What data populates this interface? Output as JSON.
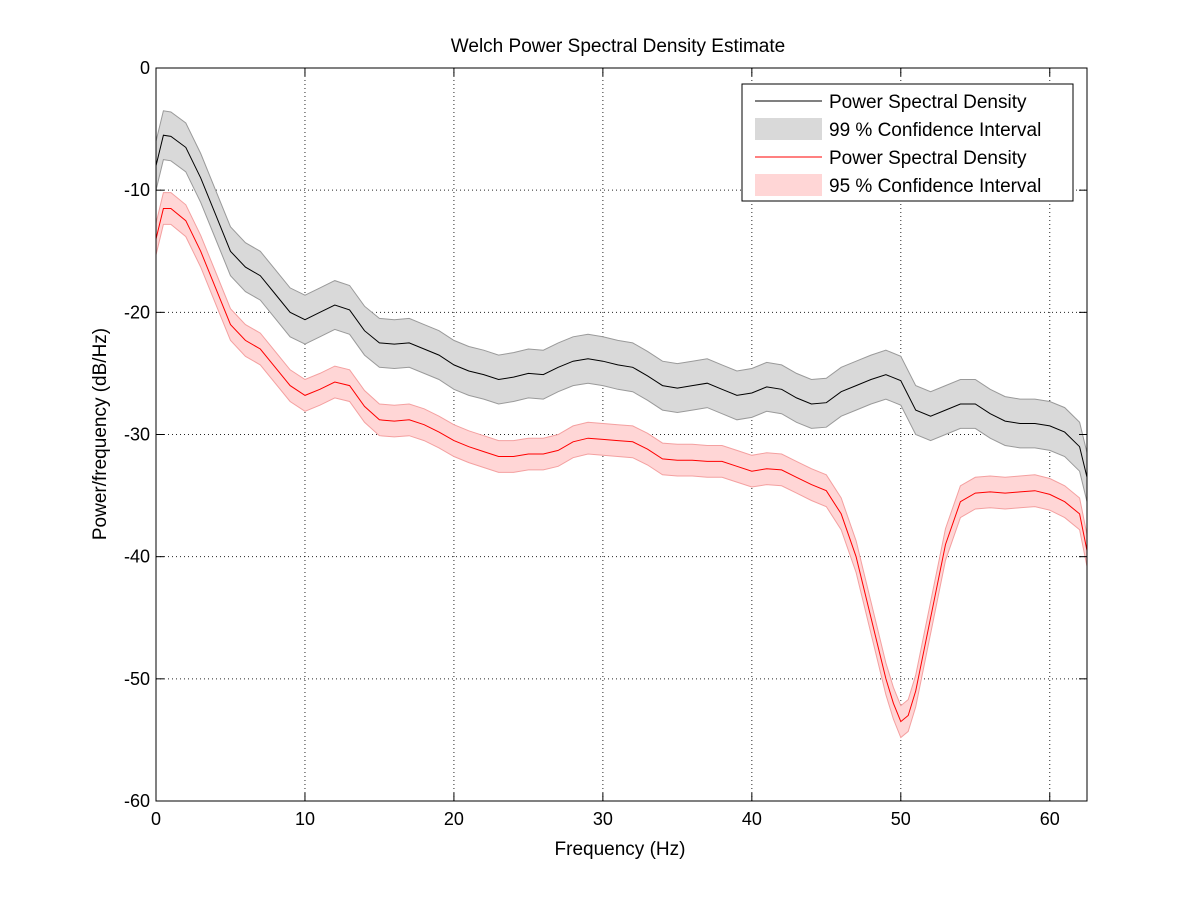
{
  "chart_data": {
    "type": "line",
    "title": "Welch Power Spectral Density Estimate",
    "xlabel": "Frequency (Hz)",
    "ylabel": "Power/frequency (dB/Hz)",
    "xlim": [
      0,
      62.5
    ],
    "ylim": [
      -60,
      0
    ],
    "xticks": [
      0,
      10,
      20,
      30,
      40,
      50,
      60
    ],
    "yticks": [
      0,
      -10,
      -20,
      -30,
      -40,
      -50,
      -60
    ],
    "grid": true,
    "legend_position": "top-right",
    "legend": [
      {
        "label": "Power Spectral Density",
        "kind": "line",
        "color": "#000000"
      },
      {
        "label": "99 % Confidence Interval",
        "kind": "band",
        "color": "#d9d9d9"
      },
      {
        "label": "Power Spectral Density",
        "kind": "line",
        "color": "#ff0000"
      },
      {
        "label": "95 % Confidence Interval",
        "kind": "band",
        "color": "#ffd6d6"
      }
    ],
    "series": [
      {
        "line_color": "#000000",
        "band_color": "#d9d9d9",
        "band_edge": "#9a9a9a",
        "band_halfwidth": 2.0,
        "x": [
          0,
          0.5,
          1,
          2,
          3,
          4,
          5,
          6,
          7,
          8,
          9,
          10,
          11,
          12,
          13,
          14,
          15,
          16,
          17,
          18,
          19,
          20,
          21,
          22,
          23,
          24,
          25,
          26,
          27,
          28,
          29,
          30,
          31,
          32,
          33,
          34,
          35,
          36,
          37,
          38,
          39,
          40,
          41,
          42,
          43,
          44,
          45,
          46,
          47,
          48,
          49,
          50,
          51,
          52,
          53,
          54,
          55,
          56,
          57,
          58,
          59,
          60,
          61,
          62,
          62.5
        ],
        "y": [
          -8,
          -5.5,
          -5.6,
          -6.5,
          -9,
          -12,
          -15,
          -16.3,
          -17,
          -18.5,
          -20,
          -20.6,
          -20,
          -19.4,
          -19.8,
          -21.5,
          -22.5,
          -22.6,
          -22.5,
          -23,
          -23.5,
          -24.3,
          -24.8,
          -25.1,
          -25.5,
          -25.3,
          -25.0,
          -25.1,
          -24.5,
          -24.0,
          -23.8,
          -24.0,
          -24.3,
          -24.5,
          -25.2,
          -26.0,
          -26.2,
          -26.0,
          -25.8,
          -26.3,
          -26.8,
          -26.6,
          -26.1,
          -26.3,
          -27.0,
          -27.5,
          -27.4,
          -26.5,
          -26.0,
          -25.5,
          -25.1,
          -25.6,
          -28.0,
          -28.5,
          -28.0,
          -27.5,
          -27.5,
          -28.3,
          -28.9,
          -29.1,
          -29.1,
          -29.3,
          -29.8,
          -31,
          -33.5
        ]
      },
      {
        "line_color": "#ff0000",
        "band_color": "#ffd6d6",
        "band_edge": "#f4a0a0",
        "band_halfwidth": 1.3,
        "x": [
          0,
          0.5,
          1,
          2,
          3,
          4,
          5,
          6,
          7,
          8,
          9,
          10,
          11,
          12,
          13,
          14,
          15,
          16,
          17,
          18,
          19,
          20,
          21,
          22,
          23,
          24,
          25,
          26,
          27,
          28,
          29,
          30,
          31,
          32,
          33,
          34,
          35,
          36,
          37,
          38,
          39,
          40,
          41,
          42,
          43,
          44,
          45,
          46,
          47,
          48,
          49,
          49.5,
          50,
          50.5,
          51,
          52,
          53,
          54,
          55,
          56,
          57,
          58,
          59,
          60,
          61,
          62,
          62.5
        ],
        "y": [
          -14,
          -11.5,
          -11.5,
          -12.5,
          -15,
          -18,
          -21,
          -22.3,
          -23,
          -24.5,
          -26,
          -26.8,
          -26.3,
          -25.7,
          -26,
          -27.7,
          -28.8,
          -28.9,
          -28.8,
          -29.2,
          -29.8,
          -30.5,
          -31.0,
          -31.4,
          -31.8,
          -31.8,
          -31.6,
          -31.6,
          -31.3,
          -30.6,
          -30.3,
          -30.4,
          -30.5,
          -30.6,
          -31.2,
          -32.0,
          -32.1,
          -32.1,
          -32.2,
          -32.2,
          -32.6,
          -33.0,
          -32.8,
          -32.9,
          -33.5,
          -34.1,
          -34.6,
          -36.5,
          -40.0,
          -45.0,
          -50.0,
          -52.0,
          -53.5,
          -53.0,
          -51.0,
          -45.0,
          -39.0,
          -35.5,
          -34.8,
          -34.7,
          -34.8,
          -34.7,
          -34.6,
          -34.9,
          -35.5,
          -36.5,
          -39.5
        ]
      }
    ]
  }
}
